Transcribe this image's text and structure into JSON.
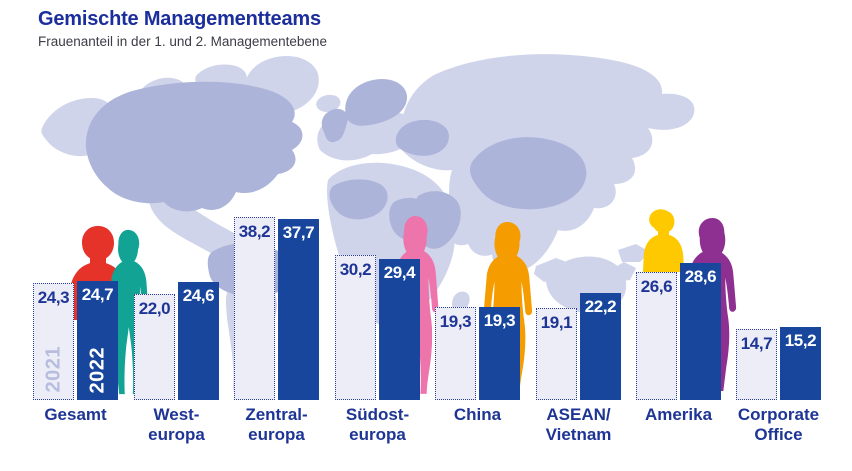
{
  "header": {
    "title": "Gemischte Managementteams",
    "subtitle": "Frauenanteil in der 1. und 2. Managementebene"
  },
  "chart_data": {
    "type": "bar",
    "title": "Gemischte Managementteams",
    "subtitle": "Frauenanteil in der 1. und 2. Managementebene",
    "value_format": "decimal-comma, one decimal place",
    "unit": "percent (Frauenanteil)",
    "legend_position": "rotated year labels inside first bar pair",
    "grid": false,
    "axes_visible": false,
    "series_names": [
      "2021",
      "2022"
    ],
    "categories": [
      "Gesamt",
      "Westeuropa",
      "Zentraleuropa",
      "Südosteuropa",
      "China",
      "ASEAN/Vietnam",
      "Amerika",
      "Corporate Office"
    ],
    "groups": [
      {
        "slug": "gesamt",
        "label_lines": [
          "Gesamt"
        ],
        "values": [
          24.3,
          24.7
        ],
        "display": [
          "24,3",
          "24,7"
        ]
      },
      {
        "slug": "westeuropa",
        "label_lines": [
          "West-",
          "europa"
        ],
        "values": [
          22.0,
          24.6
        ],
        "display": [
          "22,0",
          "24,6"
        ]
      },
      {
        "slug": "zentraleuropa",
        "label_lines": [
          "Zentral-",
          "europa"
        ],
        "values": [
          38.2,
          37.7
        ],
        "display": [
          "38,2",
          "37,7"
        ]
      },
      {
        "slug": "suedosteuropa",
        "label_lines": [
          "Südost-",
          "europa"
        ],
        "values": [
          30.2,
          29.4
        ],
        "display": [
          "30,2",
          "29,4"
        ]
      },
      {
        "slug": "china",
        "label_lines": [
          "China"
        ],
        "values": [
          19.3,
          19.3
        ],
        "display": [
          "19,3",
          "19,3"
        ]
      },
      {
        "slug": "asean-vietnam",
        "label_lines": [
          "ASEAN/",
          "Vietnam"
        ],
        "values": [
          19.1,
          22.2
        ],
        "display": [
          "19,1",
          "22,2"
        ]
      },
      {
        "slug": "amerika",
        "label_lines": [
          "Amerika"
        ],
        "values": [
          26.6,
          28.6
        ],
        "display": [
          "26,6",
          "28,6"
        ]
      },
      {
        "slug": "corporate-office",
        "label_lines": [
          "Corporate",
          "Office"
        ],
        "values": [
          14.7,
          15.2
        ],
        "display": [
          "14,7",
          "15,2"
        ]
      }
    ],
    "ylim": [
      0,
      40
    ]
  },
  "colors": {
    "title_navy": "#1b2e9c",
    "text_navy": "#1e3595",
    "bar_blue": "#17469c",
    "bar_light_fill": "#ecedf6",
    "bar_light_border": "#2c3f98",
    "year_2021_text": "#b7bddf",
    "map_light": "#cfd4eb",
    "map_dark": "#adb4da",
    "figures": {
      "red": "#e6332a",
      "teal": "#13a394",
      "pink": "#ee74ac",
      "orange": "#f59c00",
      "yellow": "#fec900",
      "purple": "#8d3092",
      "bag": "#23232e"
    }
  }
}
